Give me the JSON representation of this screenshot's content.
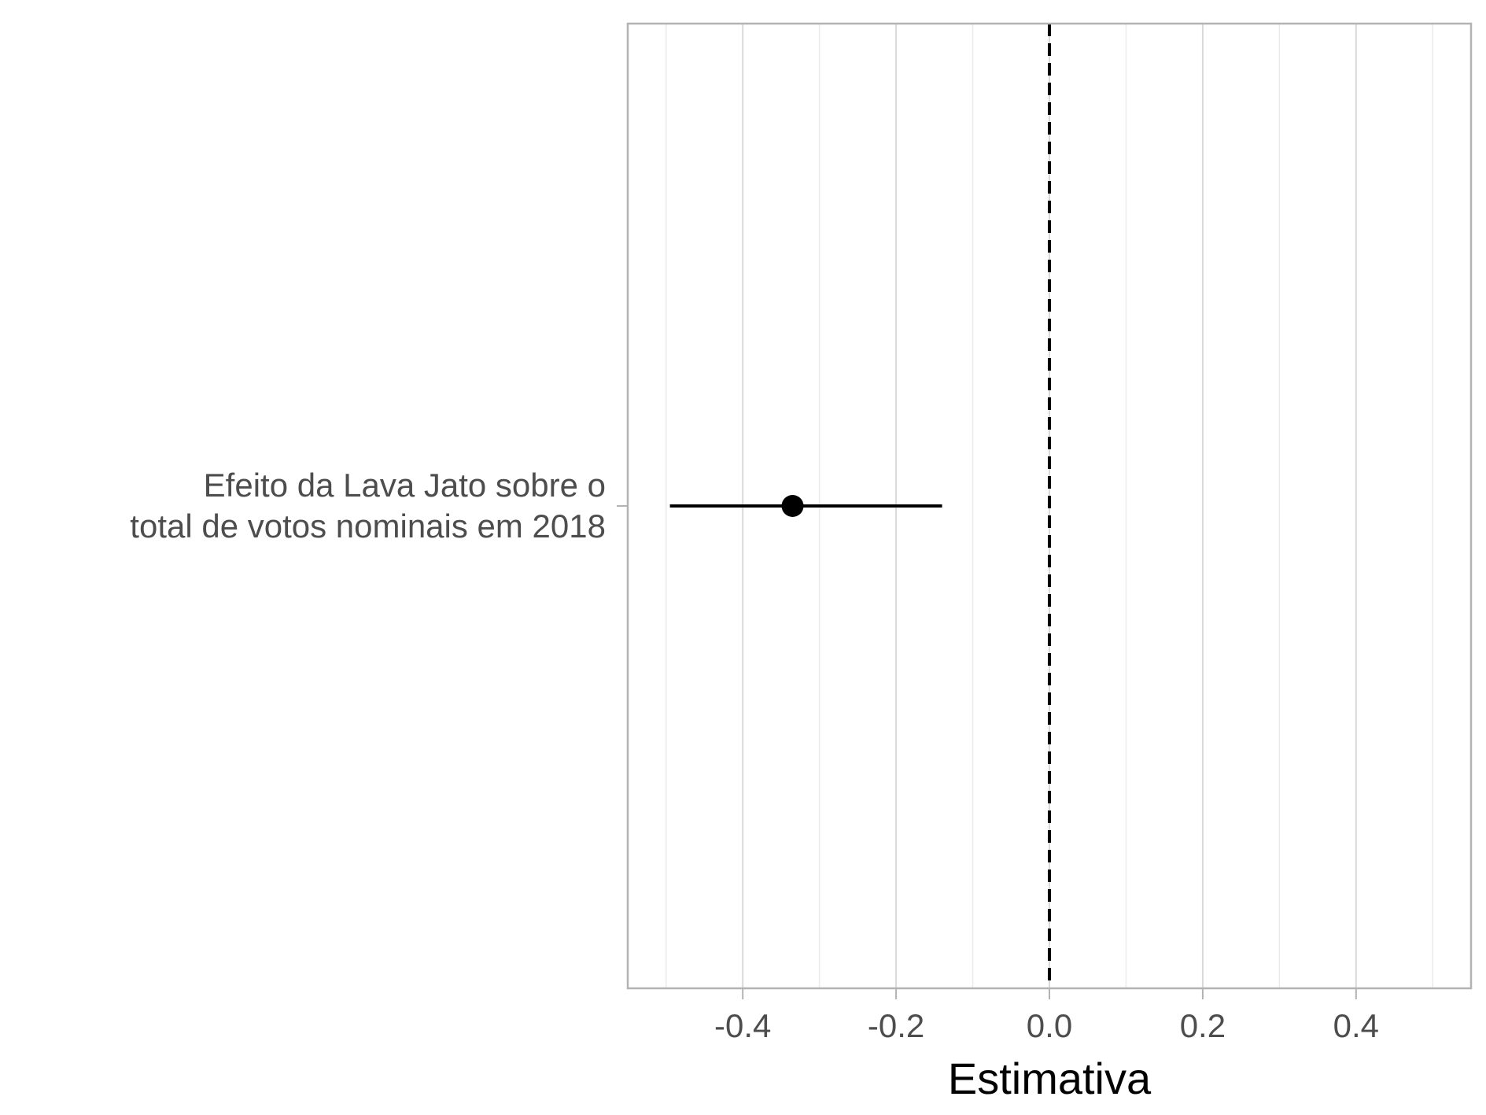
{
  "chart_data": {
    "type": "point-range",
    "title": "",
    "xlabel": "Estimativa",
    "ylabel": "",
    "xlim": [
      -0.55,
      0.55
    ],
    "x_ticks": [
      -0.4,
      -0.2,
      0.0,
      0.2,
      0.4
    ],
    "x_tick_labels": [
      "-0.4",
      "-0.2",
      "0.0",
      "0.2",
      "0.4"
    ],
    "x_minor_ticks": [
      -0.5,
      -0.3,
      -0.1,
      0.1,
      0.3,
      0.5
    ],
    "grid": true,
    "reference_line": {
      "x": 0.0,
      "style": "dashed"
    },
    "categories": [
      {
        "label_lines": [
          "Efeito da Lava Jato sobre o",
          "total de votos nominais em 2018"
        ],
        "estimate": -0.335,
        "ci_low": -0.495,
        "ci_high": -0.14
      }
    ],
    "colors": {
      "panel_border": "#b3b3b3",
      "grid_major": "#d9d9d9",
      "grid_minor": "#ebebeb",
      "point": "#000000",
      "reference_line": "#000000",
      "tick_text": "#4d4d4d",
      "title_text": "#000000"
    }
  }
}
